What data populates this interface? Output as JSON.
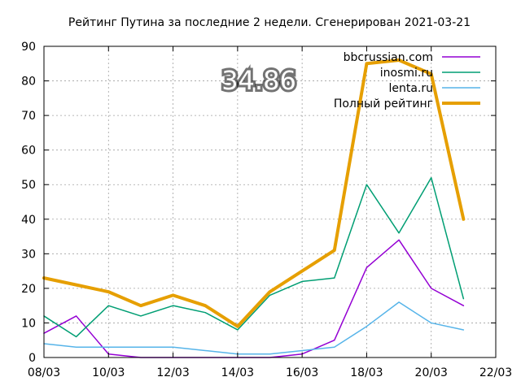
{
  "chart_data": {
    "type": "line",
    "title": "Рейтинг Путина за последние 2 недели. Сгенерирован 2021-03-21",
    "overlay_value": "34.86",
    "xlabel": "",
    "ylabel": "",
    "x_ticks": [
      "08/03",
      "10/03",
      "12/03",
      "14/03",
      "16/03",
      "18/03",
      "20/03",
      "22/03"
    ],
    "y_ticks": [
      "0",
      "10",
      "20",
      "30",
      "40",
      "50",
      "60",
      "70",
      "80",
      "90"
    ],
    "xlim": [
      "2021-03-08",
      "2021-03-22"
    ],
    "ylim": [
      0,
      90
    ],
    "grid": true,
    "legend_position": "top-right",
    "x": [
      "2021-03-08",
      "2021-03-09",
      "2021-03-10",
      "2021-03-11",
      "2021-03-12",
      "2021-03-13",
      "2021-03-14",
      "2021-03-15",
      "2021-03-16",
      "2021-03-17",
      "2021-03-18",
      "2021-03-19",
      "2021-03-20",
      "2021-03-21"
    ],
    "series": [
      {
        "name": "bbcrussian.com",
        "color": "#9400d3",
        "width": 1.5,
        "values": [
          7,
          12,
          1,
          0,
          0,
          0,
          0,
          0,
          1,
          5,
          26,
          34,
          20,
          15
        ]
      },
      {
        "name": "inosmi.ru",
        "color": "#009e73",
        "width": 1.5,
        "values": [
          12,
          6,
          15,
          12,
          15,
          13,
          8,
          18,
          22,
          23,
          50,
          36,
          52,
          17
        ]
      },
      {
        "name": "lenta.ru",
        "color": "#56b4e9",
        "width": 1.5,
        "values": [
          4,
          3,
          3,
          3,
          3,
          2,
          1,
          1,
          2,
          3,
          9,
          16,
          10,
          8
        ]
      },
      {
        "name": "Полный рейтинг",
        "color": "#e69f00",
        "width": 4,
        "values": [
          23,
          21,
          19,
          15,
          18,
          15,
          9,
          19,
          25,
          31,
          85,
          86,
          82,
          40
        ]
      }
    ]
  }
}
